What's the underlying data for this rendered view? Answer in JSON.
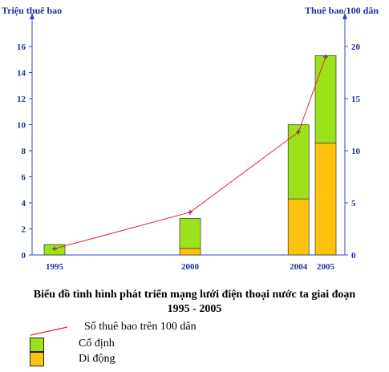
{
  "chart_data": {
    "type": "bar",
    "stacked": true,
    "categories": [
      "1995",
      "2000",
      "2004",
      "2005"
    ],
    "x": [
      1995,
      2000,
      2004,
      2005
    ],
    "series": [
      {
        "name": "Di động",
        "values": [
          0.0,
          0.5,
          4.3,
          8.6
        ],
        "color": "#ffc20e"
      },
      {
        "name": "Cố định",
        "values": [
          0.8,
          2.3,
          5.7,
          6.7
        ],
        "color": "#9be21a"
      }
    ],
    "line_series": {
      "name": "Số thuê bao trên 100 dân",
      "values": [
        0.6,
        4.1,
        11.8,
        19.0
      ],
      "color": "#e8203a",
      "axis": "right"
    },
    "ylabel_left": "Triệu thuê bao",
    "ylabel_right": "Thuê bao/100 dân",
    "ylim_left": [
      0,
      16
    ],
    "ylim_right": [
      0,
      20
    ],
    "yticks_left": [
      0,
      2,
      4,
      6,
      8,
      10,
      12,
      14,
      16
    ],
    "yticks_right": [
      0,
      5,
      10,
      15,
      20
    ],
    "title": "Biểu đồ tình hình phát triển mạng lưới điện thoại nước ta giai đoạn 1995 - 2005",
    "title_line1": "Biểu đồ tình hình phát triển mạng lưới điện thoại nước ta giai đoạn",
    "title_line2": "1995 - 2005",
    "grid": false,
    "legend_position": "bottom-left"
  },
  "colors": {
    "axis": "#3344cc",
    "tick_label": "#1f2fa0",
    "bar_outline": "#333333"
  }
}
